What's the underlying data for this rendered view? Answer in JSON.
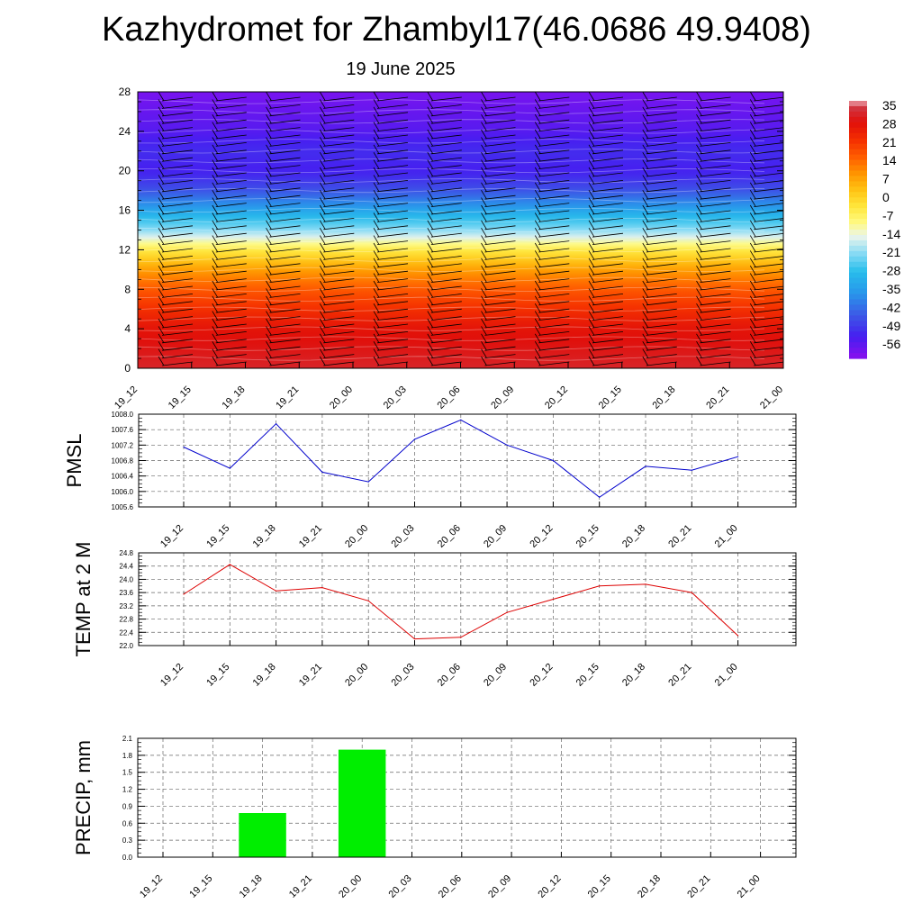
{
  "title": "Kazhydromet for Zhambyl17(46.0686 49.9408)",
  "subtitle": "19 June 2025",
  "time_labels": [
    "19_12",
    "19_15",
    "19_18",
    "19_21",
    "20_00",
    "20_03",
    "20_06",
    "20_09",
    "20_12",
    "20_15",
    "20_18",
    "20_21",
    "21_00"
  ],
  "colorbar": {
    "labels": [
      "35",
      "28",
      "21",
      "14",
      "7",
      "0",
      "-7",
      "-14",
      "-21",
      "-28",
      "-35",
      "-42",
      "-49",
      "-56"
    ]
  },
  "chart_data": [
    {
      "type": "heatmap",
      "description_source": "temperature cross-section with wind barbs",
      "x": [
        "19_12",
        "19_15",
        "19_18",
        "19_21",
        "20_00",
        "20_03",
        "20_06",
        "20_09",
        "20_12",
        "20_15",
        "20_18",
        "20_21",
        "21_00"
      ],
      "y_ticks": [
        0,
        4,
        8,
        12,
        16,
        20,
        24,
        28
      ],
      "ylim": [
        0,
        28
      ],
      "vertical_profile": {
        "levels": [
          0,
          4,
          8,
          10,
          12,
          13,
          14,
          16,
          18,
          20,
          22,
          24,
          28
        ],
        "values": [
          30,
          26,
          15,
          7,
          -5,
          -14,
          -21,
          -33,
          -45,
          -52,
          -50,
          -54,
          -58
        ]
      },
      "zlim": [
        -60,
        35
      ]
    },
    {
      "type": "line",
      "ylabel": "PMSL",
      "x": [
        "19_12",
        "19_15",
        "19_18",
        "19_21",
        "20_00",
        "20_03",
        "20_06",
        "20_09",
        "20_12",
        "20_15",
        "20_18",
        "20_21",
        "21_00"
      ],
      "y_ticks": [
        "1005.6",
        "1006.0",
        "1006.4",
        "1006.8",
        "1007.2",
        "1007.6",
        "1008.0"
      ],
      "ylim": [
        1005.6,
        1008.0
      ],
      "values": [
        1007.15,
        1006.6,
        1007.75,
        1006.5,
        1006.25,
        1007.35,
        1007.85,
        1007.2,
        1006.8,
        1005.85,
        1006.65,
        1006.55,
        1006.9
      ],
      "color": "#0000cc"
    },
    {
      "type": "line",
      "ylabel": "TEMP at 2 M",
      "x": [
        "19_12",
        "19_15",
        "19_18",
        "19_21",
        "20_00",
        "20_03",
        "20_06",
        "20_09",
        "20_12",
        "20_15",
        "20_18",
        "20_21",
        "21_00"
      ],
      "y_ticks": [
        "22.0",
        "22.4",
        "22.8",
        "23.2",
        "23.6",
        "24.0",
        "24.4",
        "24.8"
      ],
      "ylim": [
        22.0,
        24.8
      ],
      "values": [
        23.55,
        24.45,
        23.65,
        23.75,
        23.35,
        22.2,
        22.25,
        23.0,
        23.4,
        23.8,
        23.85,
        23.6,
        22.3
      ],
      "color": "#dd0000"
    },
    {
      "type": "bar",
      "ylabel": "PRECIP, mm",
      "categories": [
        "19_12",
        "19_15",
        "19_18",
        "19_21",
        "20_00",
        "20_03",
        "20_06",
        "20_09",
        "20_12",
        "20_15",
        "20_18",
        "20_21",
        "21_00"
      ],
      "y_ticks": [
        "0.0",
        "0.3",
        "0.6",
        "0.9",
        "1.2",
        "1.5",
        "1.8",
        "2.1"
      ],
      "ylim": [
        0,
        2.1
      ],
      "values": [
        0,
        0,
        0.78,
        0,
        1.9,
        0,
        0,
        0,
        0,
        0,
        0,
        0,
        0
      ],
      "color": "#00ee00"
    }
  ]
}
